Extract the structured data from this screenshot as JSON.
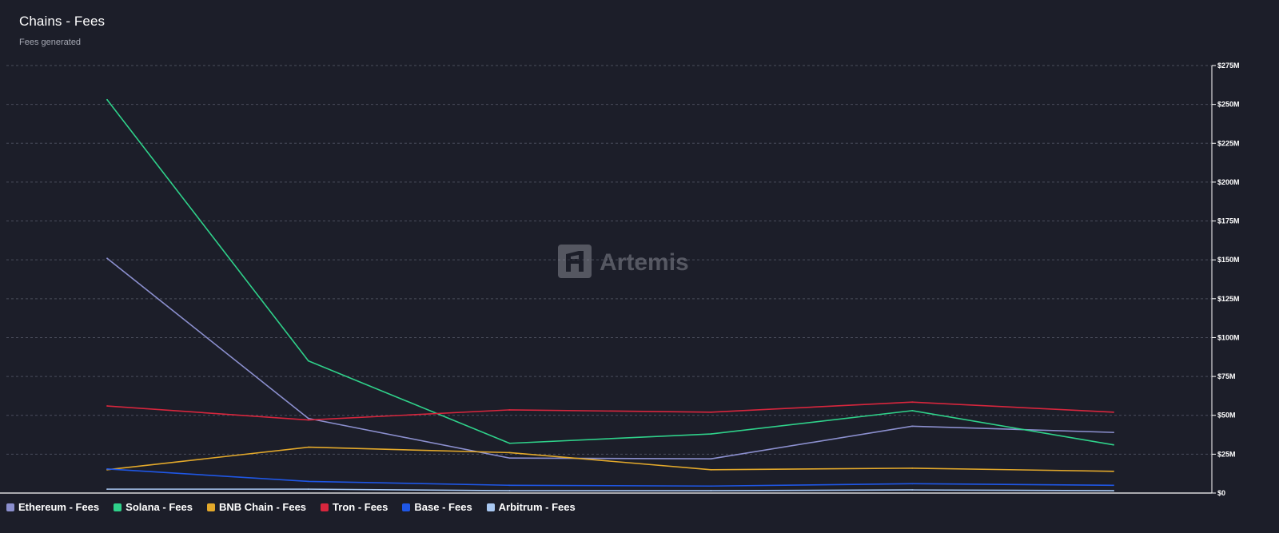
{
  "chart_data": {
    "type": "line",
    "title": "Chains - Fees",
    "subtitle": "Fees generated",
    "watermark": "Artemis",
    "xlabel": "",
    "ylabel": "",
    "ylim": [
      0,
      275000000
    ],
    "y_ticks": [
      {
        "value": 0,
        "label": "$0"
      },
      {
        "value": 25000000,
        "label": "$25M"
      },
      {
        "value": 50000000,
        "label": "$50M"
      },
      {
        "value": 75000000,
        "label": "$75M"
      },
      {
        "value": 100000000,
        "label": "$100M"
      },
      {
        "value": 125000000,
        "label": "$125M"
      },
      {
        "value": 150000000,
        "label": "$150M"
      },
      {
        "value": 175000000,
        "label": "$175M"
      },
      {
        "value": 200000000,
        "label": "$200M"
      },
      {
        "value": 225000000,
        "label": "$225M"
      },
      {
        "value": 250000000,
        "label": "$250M"
      },
      {
        "value": 275000000,
        "label": "$275M"
      }
    ],
    "x_count": 6,
    "grid": true,
    "legend_position": "bottom-left",
    "series": [
      {
        "name": "Ethereum - Fees",
        "color": "#8b8fce",
        "values": [
          151000000,
          48000000,
          22500000,
          22000000,
          43000000,
          39000000
        ]
      },
      {
        "name": "Solana - Fees",
        "color": "#2fd18a",
        "values": [
          253000000,
          85000000,
          32000000,
          38000000,
          53000000,
          31000000
        ]
      },
      {
        "name": "BNB Chain - Fees",
        "color": "#e3a92b",
        "values": [
          15000000,
          29500000,
          26000000,
          15000000,
          16000000,
          14000000
        ]
      },
      {
        "name": "Tron - Fees",
        "color": "#d7263d",
        "values": [
          56000000,
          47000000,
          53500000,
          52000000,
          58500000,
          52000000
        ]
      },
      {
        "name": "Base - Fees",
        "color": "#1f57e6",
        "values": [
          15500000,
          7500000,
          5000000,
          4500000,
          6000000,
          5000000
        ]
      },
      {
        "name": "Arbitrum - Fees",
        "color": "#a9c8f2",
        "values": [
          2500000,
          2500000,
          1500000,
          1500000,
          2000000,
          1500000
        ]
      }
    ]
  }
}
